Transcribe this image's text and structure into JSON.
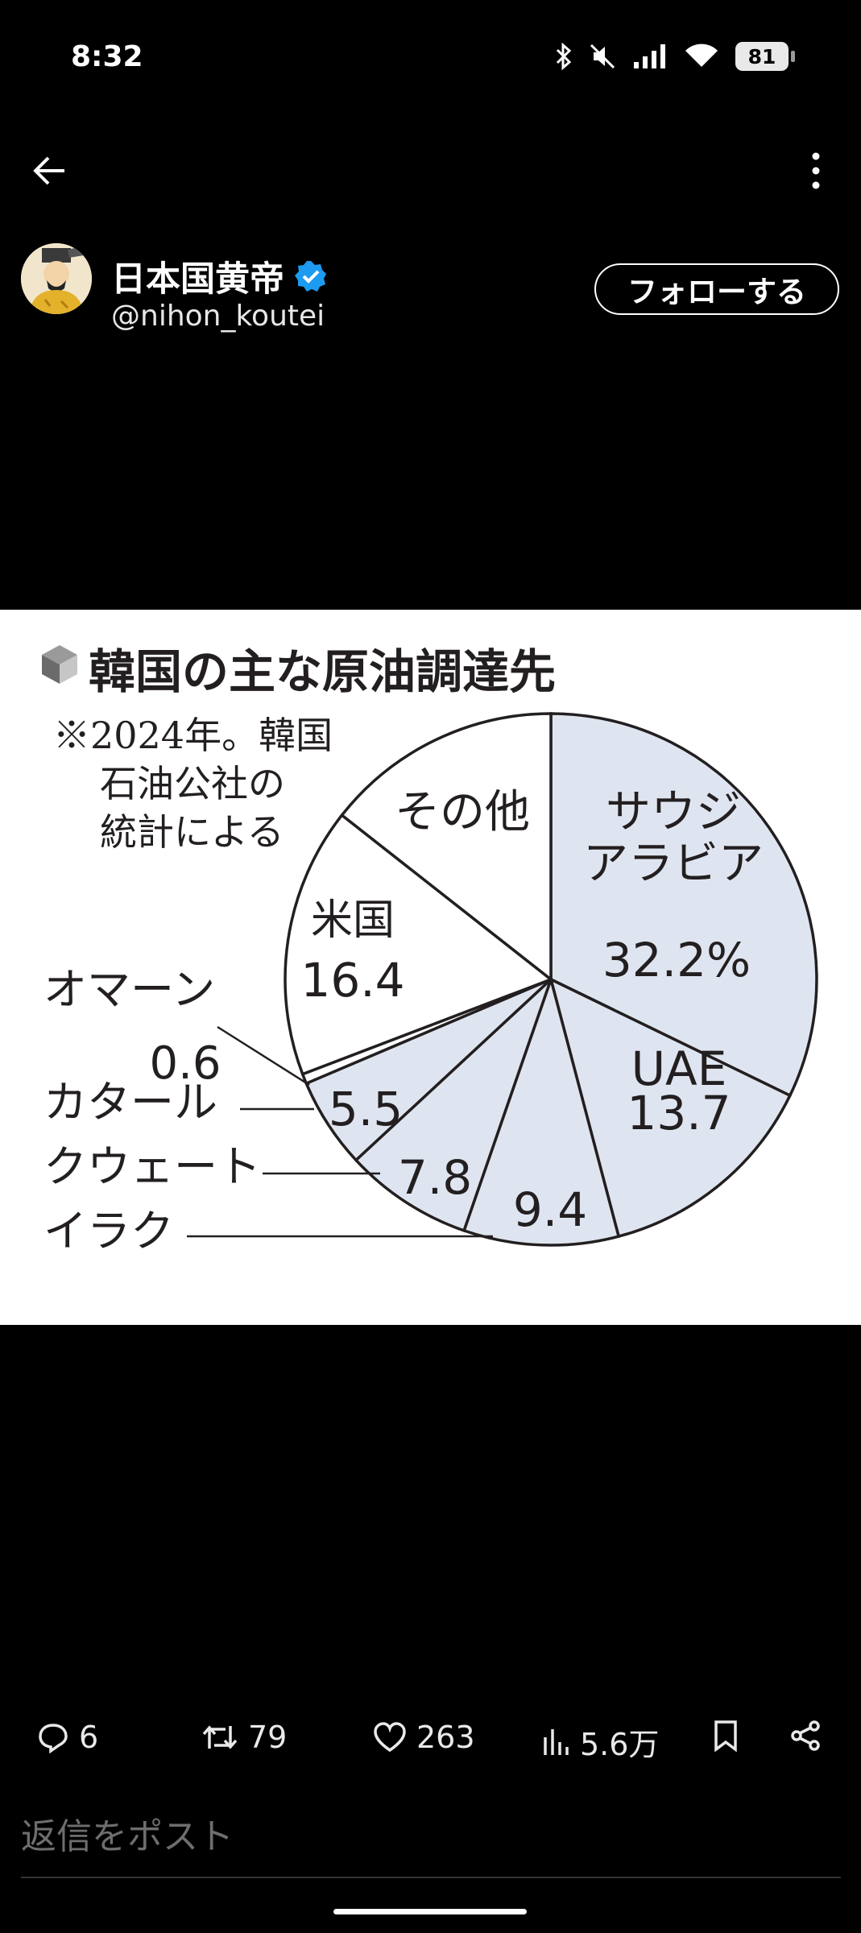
{
  "status_bar": {
    "time": "8:32",
    "battery": "81"
  },
  "user": {
    "display_name": "日本国黄帝",
    "handle": "@nihon_koutei",
    "follow_label": "フォローする"
  },
  "colors": {
    "slice_fill": "#dfe5f0",
    "slice_white": "#ffffff",
    "verified": "#1d9bf0"
  },
  "post_image": {
    "title": "韓国の主な原油調達先",
    "note_lines": [
      "※2024年。韓国",
      "石油公社の",
      "統計による"
    ]
  },
  "chart_data": {
    "type": "pie",
    "title": "韓国の主な原油調達先",
    "unit": "%",
    "slices": [
      {
        "label_lines": [
          "サウジ",
          "アラビア"
        ],
        "value": 32.2,
        "value_text": "32.2%",
        "shaded": true
      },
      {
        "label_lines": [
          "UAE"
        ],
        "value": 13.7,
        "value_text": "13.7",
        "shaded": true
      },
      {
        "label_lines": [
          "イラク"
        ],
        "value": 9.4,
        "value_text": "9.4",
        "shaded": true
      },
      {
        "label_lines": [
          "クウェート"
        ],
        "value": 7.8,
        "value_text": "7.8",
        "shaded": true
      },
      {
        "label_lines": [
          "カタール"
        ],
        "value": 5.5,
        "value_text": "5.5",
        "shaded": true
      },
      {
        "label_lines": [
          "オマーン"
        ],
        "value": 0.6,
        "value_text": "0.6",
        "shaded": false
      },
      {
        "label_lines": [
          "米国"
        ],
        "value": 16.4,
        "value_text": "16.4",
        "shaded": false
      },
      {
        "label_lines": [
          "その他"
        ],
        "value": 14.4,
        "value_text": "",
        "shaded": false
      }
    ]
  },
  "actions": {
    "replies": "6",
    "reposts": "79",
    "likes": "263",
    "views": "5.6万"
  },
  "reply": {
    "placeholder": "返信をポスト"
  }
}
